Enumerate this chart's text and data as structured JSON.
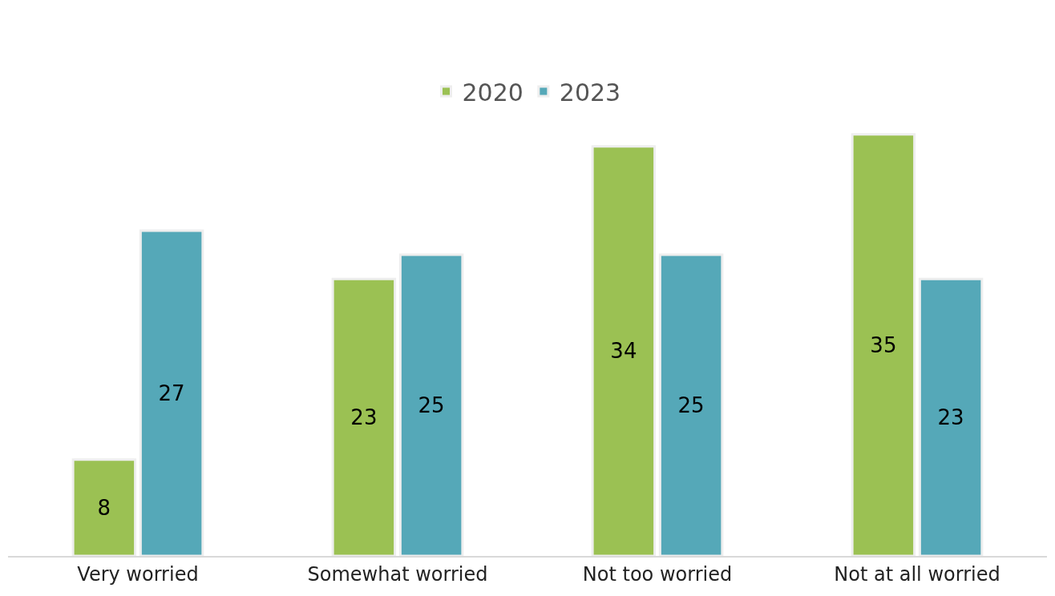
{
  "chart_data": {
    "type": "bar",
    "categories": [
      "Very worried",
      "Somewhat worried",
      "Not too worried",
      "Not at all worried"
    ],
    "series": [
      {
        "name": "2020",
        "color": "#9bc153",
        "values": [
          8,
          23,
          34,
          35
        ]
      },
      {
        "name": "2023",
        "color": "#55a8b8",
        "values": [
          27,
          25,
          25,
          23
        ]
      }
    ],
    "data_labels": true,
    "legend": "top"
  }
}
